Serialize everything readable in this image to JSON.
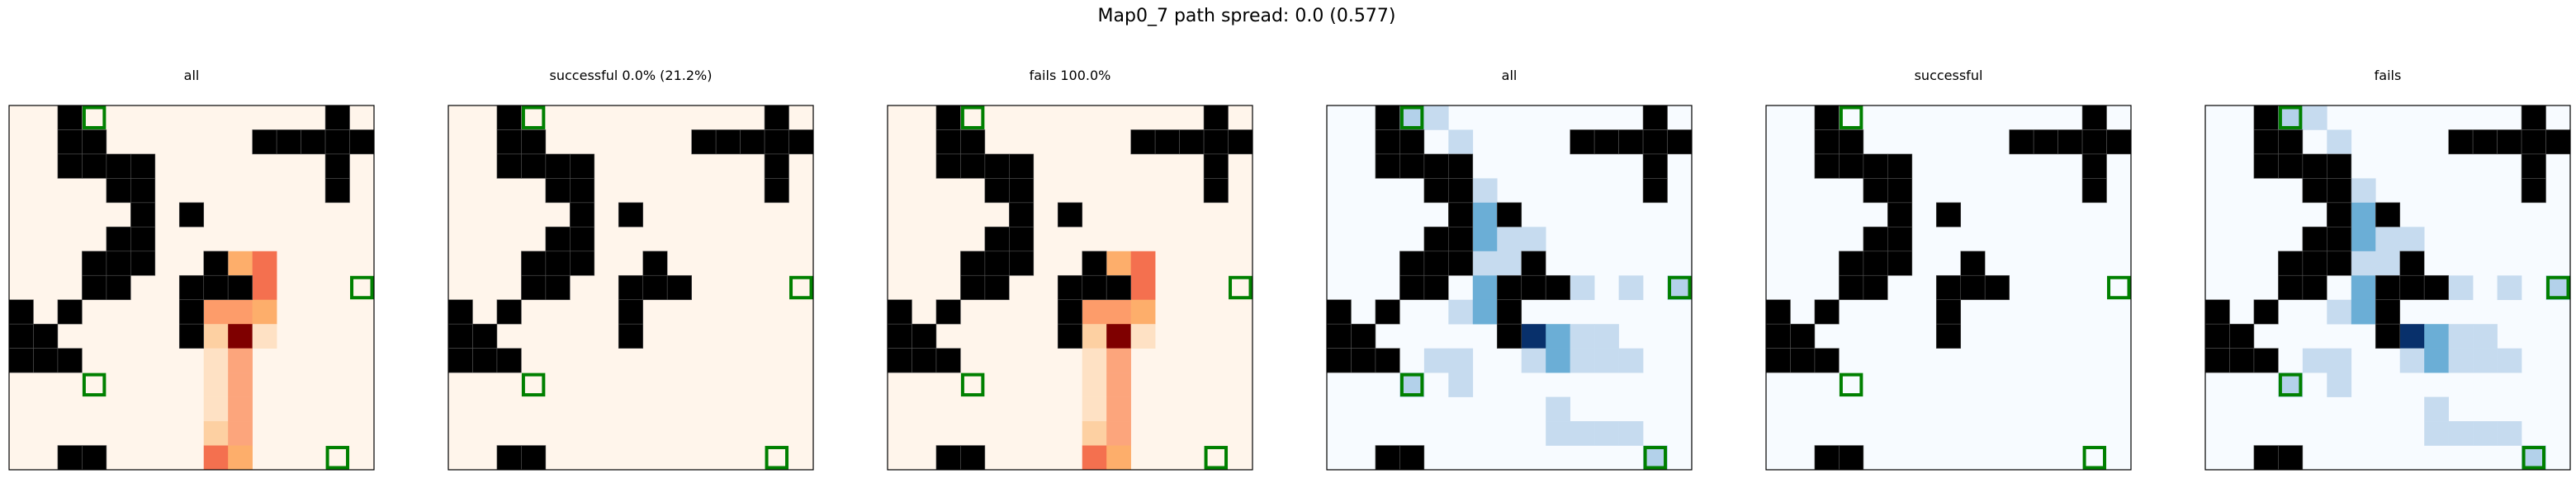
{
  "figure": {
    "title": "Map0_7 path spread: 0.0 (0.577)"
  },
  "chart_data": {
    "type": "heatmap",
    "grid_size": [
      15,
      15
    ],
    "grid_lines": false,
    "obstacle_color": "#000000",
    "goal_marker_color": "#008000",
    "obstacles": [
      [
        0,
        2
      ],
      [
        0,
        13
      ],
      [
        1,
        2
      ],
      [
        1,
        3
      ],
      [
        1,
        10
      ],
      [
        1,
        11
      ],
      [
        1,
        12
      ],
      [
        1,
        13
      ],
      [
        1,
        14
      ],
      [
        2,
        2
      ],
      [
        2,
        3
      ],
      [
        2,
        4
      ],
      [
        2,
        5
      ],
      [
        2,
        13
      ],
      [
        3,
        4
      ],
      [
        3,
        5
      ],
      [
        3,
        13
      ],
      [
        4,
        5
      ],
      [
        4,
        7
      ],
      [
        5,
        4
      ],
      [
        5,
        5
      ],
      [
        6,
        3
      ],
      [
        6,
        4
      ],
      [
        6,
        5
      ],
      [
        6,
        8
      ],
      [
        7,
        3
      ],
      [
        7,
        4
      ],
      [
        7,
        7
      ],
      [
        7,
        8
      ],
      [
        7,
        9
      ],
      [
        8,
        0
      ],
      [
        8,
        2
      ],
      [
        8,
        7
      ],
      [
        9,
        0
      ],
      [
        9,
        1
      ],
      [
        9,
        7
      ],
      [
        10,
        0
      ],
      [
        10,
        1
      ],
      [
        10,
        2
      ],
      [
        14,
        2
      ],
      [
        14,
        3
      ]
    ],
    "goals": [
      [
        0,
        3
      ],
      [
        7,
        14
      ],
      [
        11,
        3
      ],
      [
        14,
        13
      ]
    ],
    "panels": [
      {
        "title": "all",
        "colormap": "oranges",
        "cells": [
          [
            6,
            8,
            3
          ],
          [
            6,
            9,
            4
          ],
          [
            6,
            10,
            8
          ],
          [
            7,
            10,
            8
          ],
          [
            8,
            8,
            5
          ],
          [
            8,
            9,
            5
          ],
          [
            8,
            10,
            4
          ],
          [
            9,
            8,
            3
          ],
          [
            9,
            9,
            10
          ],
          [
            9,
            10,
            2
          ],
          [
            10,
            8,
            2
          ],
          [
            10,
            9,
            6
          ],
          [
            11,
            8,
            2
          ],
          [
            11,
            9,
            6
          ],
          [
            12,
            8,
            2
          ],
          [
            12,
            9,
            6
          ],
          [
            13,
            8,
            3
          ],
          [
            13,
            9,
            6
          ],
          [
            14,
            8,
            8
          ],
          [
            14,
            9,
            4
          ]
        ]
      },
      {
        "title": "successful 0.0% (21.2%)",
        "colormap": "oranges",
        "cells": []
      },
      {
        "title": "fails 100.0%",
        "colormap": "oranges",
        "cells": [
          [
            6,
            8,
            3
          ],
          [
            6,
            9,
            4
          ],
          [
            6,
            10,
            8
          ],
          [
            7,
            10,
            8
          ],
          [
            8,
            8,
            5
          ],
          [
            8,
            9,
            5
          ],
          [
            8,
            10,
            4
          ],
          [
            9,
            8,
            3
          ],
          [
            9,
            9,
            10
          ],
          [
            9,
            10,
            2
          ],
          [
            10,
            8,
            2
          ],
          [
            10,
            9,
            6
          ],
          [
            11,
            8,
            2
          ],
          [
            11,
            9,
            6
          ],
          [
            12,
            8,
            2
          ],
          [
            12,
            9,
            6
          ],
          [
            13,
            8,
            3
          ],
          [
            13,
            9,
            6
          ],
          [
            14,
            8,
            8
          ],
          [
            14,
            9,
            4
          ]
        ]
      },
      {
        "title": "all",
        "colormap": "blues",
        "cells": [
          [
            0,
            3,
            3
          ],
          [
            0,
            4,
            2
          ],
          [
            1,
            5,
            2
          ],
          [
            2,
            5,
            2
          ],
          [
            3,
            6,
            2
          ],
          [
            4,
            6,
            5
          ],
          [
            4,
            7,
            2
          ],
          [
            5,
            6,
            5
          ],
          [
            5,
            7,
            2
          ],
          [
            5,
            8,
            2
          ],
          [
            6,
            6,
            2
          ],
          [
            6,
            7,
            2
          ],
          [
            7,
            6,
            5
          ],
          [
            7,
            10,
            2
          ],
          [
            7,
            12,
            2
          ],
          [
            7,
            14,
            3
          ],
          [
            8,
            5,
            2
          ],
          [
            8,
            6,
            5
          ],
          [
            9,
            8,
            10
          ],
          [
            9,
            9,
            5
          ],
          [
            9,
            10,
            2
          ],
          [
            9,
            11,
            2
          ],
          [
            10,
            4,
            2
          ],
          [
            10,
            5,
            2
          ],
          [
            10,
            8,
            2
          ],
          [
            10,
            9,
            5
          ],
          [
            10,
            10,
            2
          ],
          [
            10,
            11,
            2
          ],
          [
            10,
            12,
            2
          ],
          [
            11,
            3,
            3
          ],
          [
            11,
            5,
            2
          ],
          [
            12,
            9,
            2
          ],
          [
            13,
            9,
            2
          ],
          [
            13,
            10,
            2
          ],
          [
            13,
            11,
            2
          ],
          [
            13,
            12,
            2
          ],
          [
            14,
            13,
            3
          ]
        ]
      },
      {
        "title": "successful",
        "colormap": "blues",
        "cells": []
      },
      {
        "title": "fails",
        "colormap": "blues",
        "cells": [
          [
            0,
            3,
            3
          ],
          [
            0,
            4,
            2
          ],
          [
            1,
            5,
            2
          ],
          [
            2,
            5,
            2
          ],
          [
            3,
            6,
            2
          ],
          [
            4,
            6,
            5
          ],
          [
            4,
            7,
            2
          ],
          [
            5,
            6,
            5
          ],
          [
            5,
            7,
            2
          ],
          [
            5,
            8,
            2
          ],
          [
            6,
            6,
            2
          ],
          [
            6,
            7,
            2
          ],
          [
            7,
            6,
            5
          ],
          [
            7,
            10,
            2
          ],
          [
            7,
            12,
            2
          ],
          [
            7,
            14,
            3
          ],
          [
            8,
            5,
            2
          ],
          [
            8,
            6,
            5
          ],
          [
            9,
            8,
            10
          ],
          [
            9,
            9,
            5
          ],
          [
            9,
            10,
            2
          ],
          [
            9,
            11,
            2
          ],
          [
            10,
            4,
            2
          ],
          [
            10,
            5,
            2
          ],
          [
            10,
            8,
            2
          ],
          [
            10,
            9,
            5
          ],
          [
            10,
            10,
            2
          ],
          [
            10,
            11,
            2
          ],
          [
            10,
            12,
            2
          ],
          [
            11,
            3,
            3
          ],
          [
            11,
            5,
            2
          ],
          [
            12,
            9,
            2
          ],
          [
            13,
            9,
            2
          ],
          [
            13,
            10,
            2
          ],
          [
            13,
            11,
            2
          ],
          [
            13,
            12,
            2
          ],
          [
            14,
            13,
            3
          ]
        ]
      }
    ]
  }
}
